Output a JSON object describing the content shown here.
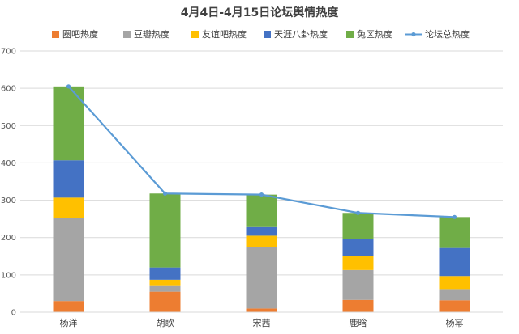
{
  "chart_data": {
    "type": "bar",
    "stacked": true,
    "title": "4月4日-4月15日论坛舆情热度",
    "categories": [
      "杨洋",
      "胡歌",
      "宋茜",
      "鹿晗",
      "杨幂"
    ],
    "ylim": [
      0,
      700
    ],
    "yticks": [
      0,
      100,
      200,
      300,
      400,
      500,
      600,
      700
    ],
    "grid": true,
    "legend_position": "top",
    "series": [
      {
        "name": "圈吧热度",
        "color": "#ed7d31",
        "values": [
          30,
          55,
          10,
          33,
          32
        ]
      },
      {
        "name": "豆瓣热度",
        "color": "#a5a5a5",
        "values": [
          222,
          15,
          165,
          80,
          30
        ]
      },
      {
        "name": "友谊吧热度",
        "color": "#ffc000",
        "values": [
          55,
          17,
          30,
          38,
          35
        ]
      },
      {
        "name": "天涯八卦热度",
        "color": "#4472c4",
        "values": [
          100,
          33,
          23,
          45,
          75
        ]
      },
      {
        "name": "兔区热度",
        "color": "#70ad47",
        "values": [
          198,
          198,
          87,
          70,
          83
        ]
      }
    ],
    "line_series": {
      "name": "论坛总热度",
      "color": "#5b9bd5",
      "values": [
        605,
        318,
        315,
        266,
        255
      ]
    }
  }
}
